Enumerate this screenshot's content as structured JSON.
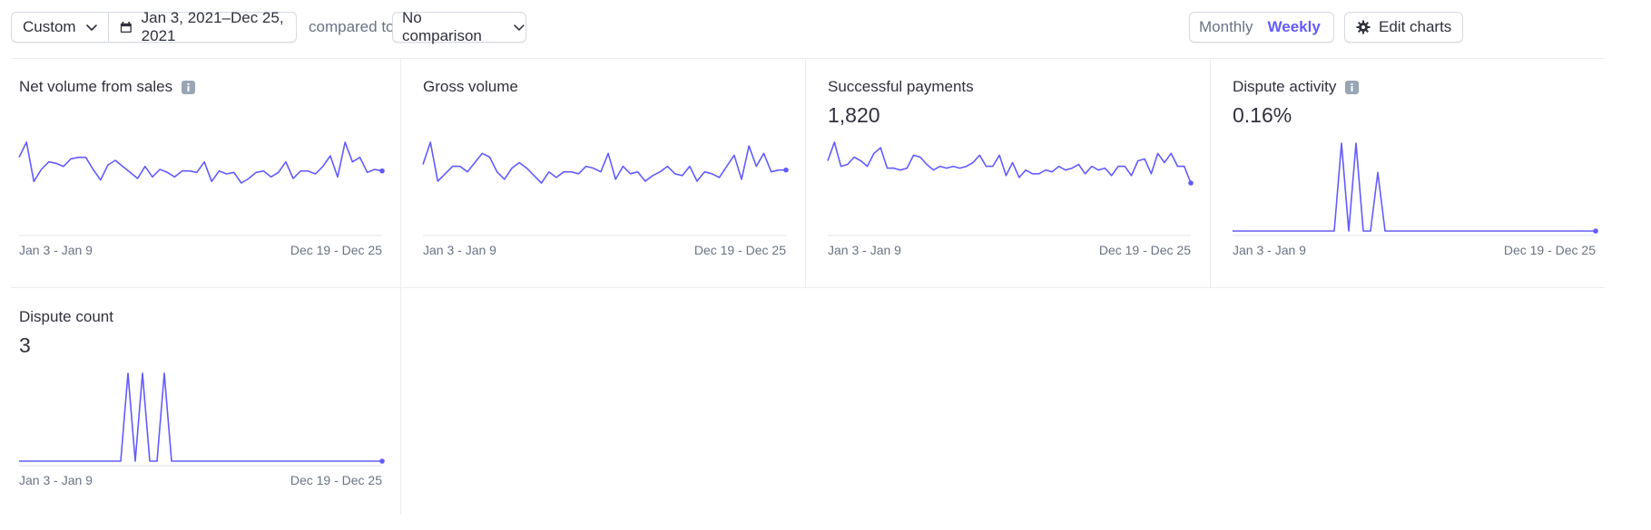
{
  "toolbar": {
    "range_label": "Custom",
    "date_range": "Jan 3, 2021–Dec 25, 2021",
    "compared_label": "compared to",
    "comparison_label": "No comparison",
    "period_monthly": "Monthly",
    "period_weekly": "Weekly",
    "period_selected": "Weekly",
    "edit_charts_label": "Edit charts"
  },
  "colors": {
    "accent": "#635bff",
    "axis": "#ebeef1",
    "muted": "#6a7383"
  },
  "cards": [
    {
      "title": "Net volume from sales",
      "value": "",
      "has_info": true,
      "start_label": "Jan 3 - Jan 9",
      "end_label": "Dec 19 - Dec 25",
      "chart_data": {
        "type": "line",
        "x_start": "Jan 3 - Jan 9",
        "x_end": "Dec 19 - Dec 25",
        "values": [
          58,
          68,
          42,
          50,
          55,
          54,
          52,
          57,
          58,
          58,
          50,
          43,
          53,
          56,
          52,
          48,
          44,
          52,
          45,
          50,
          48,
          45,
          49,
          49,
          48,
          55,
          42,
          49,
          47,
          48,
          41,
          44,
          48,
          49,
          45,
          48,
          55,
          44,
          49,
          49,
          47,
          52,
          59,
          45,
          68,
          55,
          58,
          48,
          50,
          49
        ],
        "grid": false
      }
    },
    {
      "title": "Gross volume",
      "value": "",
      "has_info": false,
      "start_label": "Jan 3 - Jan 9",
      "end_label": "Dec 19 - Dec 25",
      "chart_data": {
        "type": "line",
        "x_start": "Jan 3 - Jan 9",
        "x_end": "Dec 19 - Dec 25",
        "values": [
          56,
          68,
          47,
          51,
          55,
          55,
          52,
          57,
          62,
          60,
          52,
          48,
          54,
          57,
          54,
          50,
          46,
          52,
          49,
          52,
          52,
          51,
          55,
          54,
          52,
          62,
          48,
          55,
          51,
          52,
          47,
          50,
          52,
          55,
          51,
          50,
          55,
          47,
          52,
          51,
          49,
          55,
          61,
          48,
          66,
          55,
          62,
          52,
          53,
          53
        ],
        "grid": false
      }
    },
    {
      "title": "Successful payments",
      "value": "1,820",
      "has_info": false,
      "start_label": "Jan 3 - Jan 9",
      "end_label": "Dec 19 - Dec 25",
      "chart_data": {
        "type": "line",
        "x_start": "Jan 3 - Jan 9",
        "x_end": "Dec 19 - Dec 25",
        "values": [
          60,
          70,
          57,
          58,
          62,
          60,
          57,
          64,
          67,
          56,
          56,
          55,
          56,
          63,
          62,
          58,
          55,
          57,
          56,
          57,
          56,
          57,
          59,
          63,
          57,
          57,
          63,
          52,
          59,
          51,
          55,
          53,
          53,
          55,
          54,
          57,
          55,
          56,
          58,
          53,
          57,
          55,
          56,
          52,
          57,
          57,
          52,
          60,
          61,
          53,
          64,
          59,
          64,
          57,
          57,
          48
        ],
        "grid": false
      }
    },
    {
      "title": "Dispute activity",
      "value": "0.16%",
      "has_info": true,
      "start_label": "Jan 3 - Jan 9",
      "end_label": "Dec 19 - Dec 25",
      "chart_data": {
        "type": "line",
        "x_start": "Jan 3 - Jan 9",
        "x_end": "Dec 19 - Dec 25",
        "values": [
          0,
          0,
          0,
          0,
          0,
          0,
          0,
          0,
          0,
          0,
          0,
          0,
          0,
          0,
          0,
          0.6,
          0,
          0.6,
          0,
          0,
          0.4,
          0,
          0,
          0,
          0,
          0,
          0,
          0,
          0,
          0,
          0,
          0,
          0,
          0,
          0,
          0,
          0,
          0,
          0,
          0,
          0,
          0,
          0,
          0,
          0,
          0,
          0,
          0,
          0,
          0,
          0
        ],
        "grid": false
      }
    },
    {
      "title": "Dispute count",
      "value": "3",
      "has_info": false,
      "start_label": "Jan 3 - Jan 9",
      "end_label": "Dec 19 - Dec 25",
      "chart_data": {
        "type": "line",
        "x_start": "Jan 3 - Jan 9",
        "x_end": "Dec 19 - Dec 25",
        "values": [
          0,
          0,
          0,
          0,
          0,
          0,
          0,
          0,
          0,
          0,
          0,
          0,
          0,
          0,
          0,
          1,
          0,
          1,
          0,
          0,
          1,
          0,
          0,
          0,
          0,
          0,
          0,
          0,
          0,
          0,
          0,
          0,
          0,
          0,
          0,
          0,
          0,
          0,
          0,
          0,
          0,
          0,
          0,
          0,
          0,
          0,
          0,
          0,
          0,
          0,
          0
        ],
        "grid": false
      }
    }
  ]
}
